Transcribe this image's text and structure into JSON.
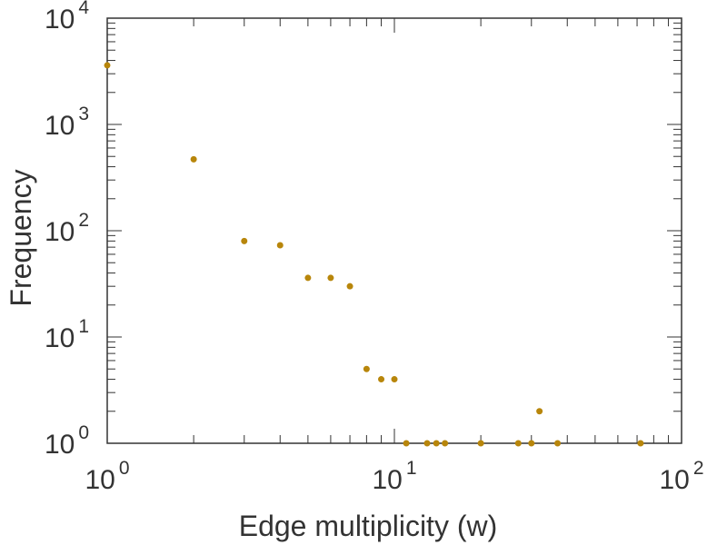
{
  "chart_data": {
    "type": "scatter",
    "xlabel": "Edge multiplicity (w)",
    "ylabel": "Frequency",
    "xscale": "log",
    "yscale": "log",
    "xlim": [
      1,
      100
    ],
    "ylim": [
      1,
      10000
    ],
    "grid": false,
    "legend": "none",
    "marker_color": "#b8860b",
    "x_ticks": [
      {
        "base": "10",
        "exp": "0",
        "value": 1
      },
      {
        "base": "10",
        "exp": "1",
        "value": 10
      },
      {
        "base": "10",
        "exp": "2",
        "value": 100
      }
    ],
    "y_ticks": [
      {
        "base": "10",
        "exp": "0",
        "value": 1
      },
      {
        "base": "10",
        "exp": "1",
        "value": 10
      },
      {
        "base": "10",
        "exp": "2",
        "value": 100
      },
      {
        "base": "10",
        "exp": "3",
        "value": 1000
      },
      {
        "base": "10",
        "exp": "4",
        "value": 10000
      }
    ],
    "points": [
      {
        "x": 1,
        "y": 3600
      },
      {
        "x": 2,
        "y": 470
      },
      {
        "x": 3,
        "y": 80
      },
      {
        "x": 4,
        "y": 73
      },
      {
        "x": 5,
        "y": 36
      },
      {
        "x": 6,
        "y": 36
      },
      {
        "x": 7,
        "y": 30
      },
      {
        "x": 8,
        "y": 5
      },
      {
        "x": 9,
        "y": 4
      },
      {
        "x": 10,
        "y": 4
      },
      {
        "x": 11,
        "y": 1
      },
      {
        "x": 13,
        "y": 1
      },
      {
        "x": 14,
        "y": 1
      },
      {
        "x": 15,
        "y": 1
      },
      {
        "x": 20,
        "y": 1
      },
      {
        "x": 27,
        "y": 1
      },
      {
        "x": 30,
        "y": 1
      },
      {
        "x": 32,
        "y": 2
      },
      {
        "x": 37,
        "y": 1
      },
      {
        "x": 72,
        "y": 1
      }
    ]
  }
}
